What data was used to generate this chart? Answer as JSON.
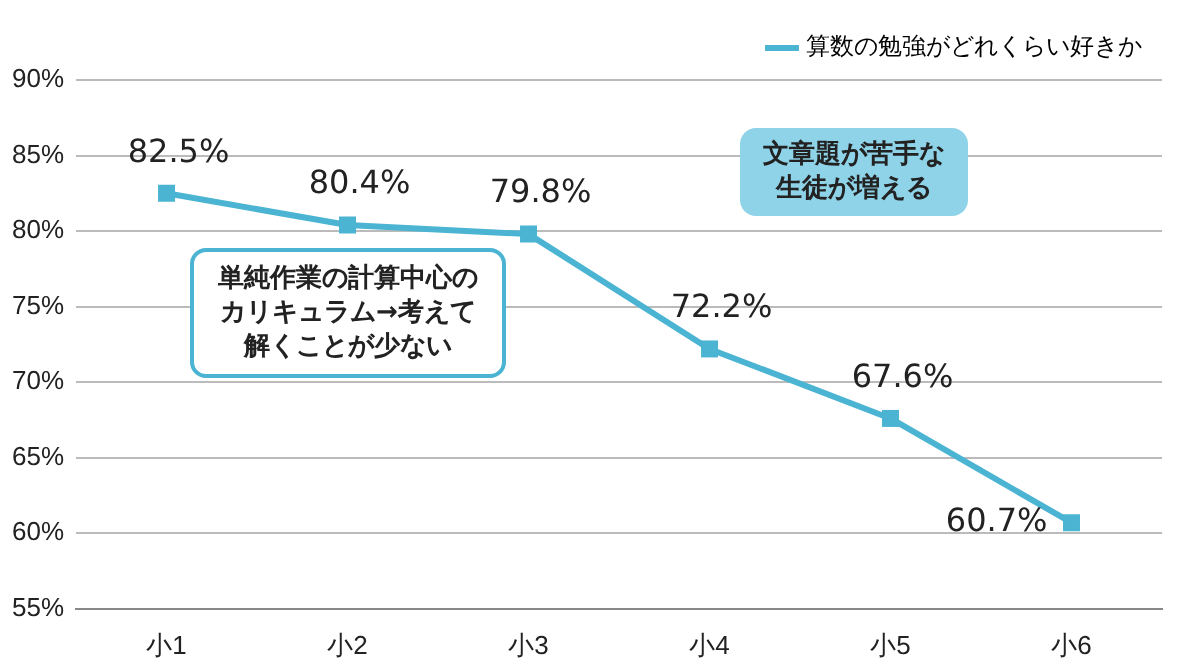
{
  "chart_data": {
    "type": "line",
    "categories": [
      "小1",
      "小2",
      "小3",
      "小4",
      "小5",
      "小6"
    ],
    "series": [
      {
        "name": "算数の勉強がどれくらい好きか",
        "color": "#4ab4d2",
        "values": [
          82.5,
          80.4,
          79.8,
          72.2,
          67.6,
          60.7
        ],
        "value_labels": [
          "82.5%",
          "80.4%",
          "79.8%",
          "72.2%",
          "67.6%",
          "60.7%"
        ]
      }
    ],
    "ylim": [
      55,
      90
    ],
    "yticks": [
      {
        "value": 55,
        "label": "55%"
      },
      {
        "value": 60,
        "label": "60%"
      },
      {
        "value": 65,
        "label": "65%"
      },
      {
        "value": 70,
        "label": "70%"
      },
      {
        "value": 75,
        "label": "75%"
      },
      {
        "value": 80,
        "label": "80%"
      },
      {
        "value": 85,
        "label": "85%"
      },
      {
        "value": 90,
        "label": "90%"
      }
    ],
    "grid": "y",
    "legend": "top right",
    "marker": "square",
    "line_style": "solid",
    "annotations": [
      "単純作業の計算中心のカリキュラム→考えて解くことが少ない",
      "文章題が苦手な生徒が増える"
    ]
  }
}
